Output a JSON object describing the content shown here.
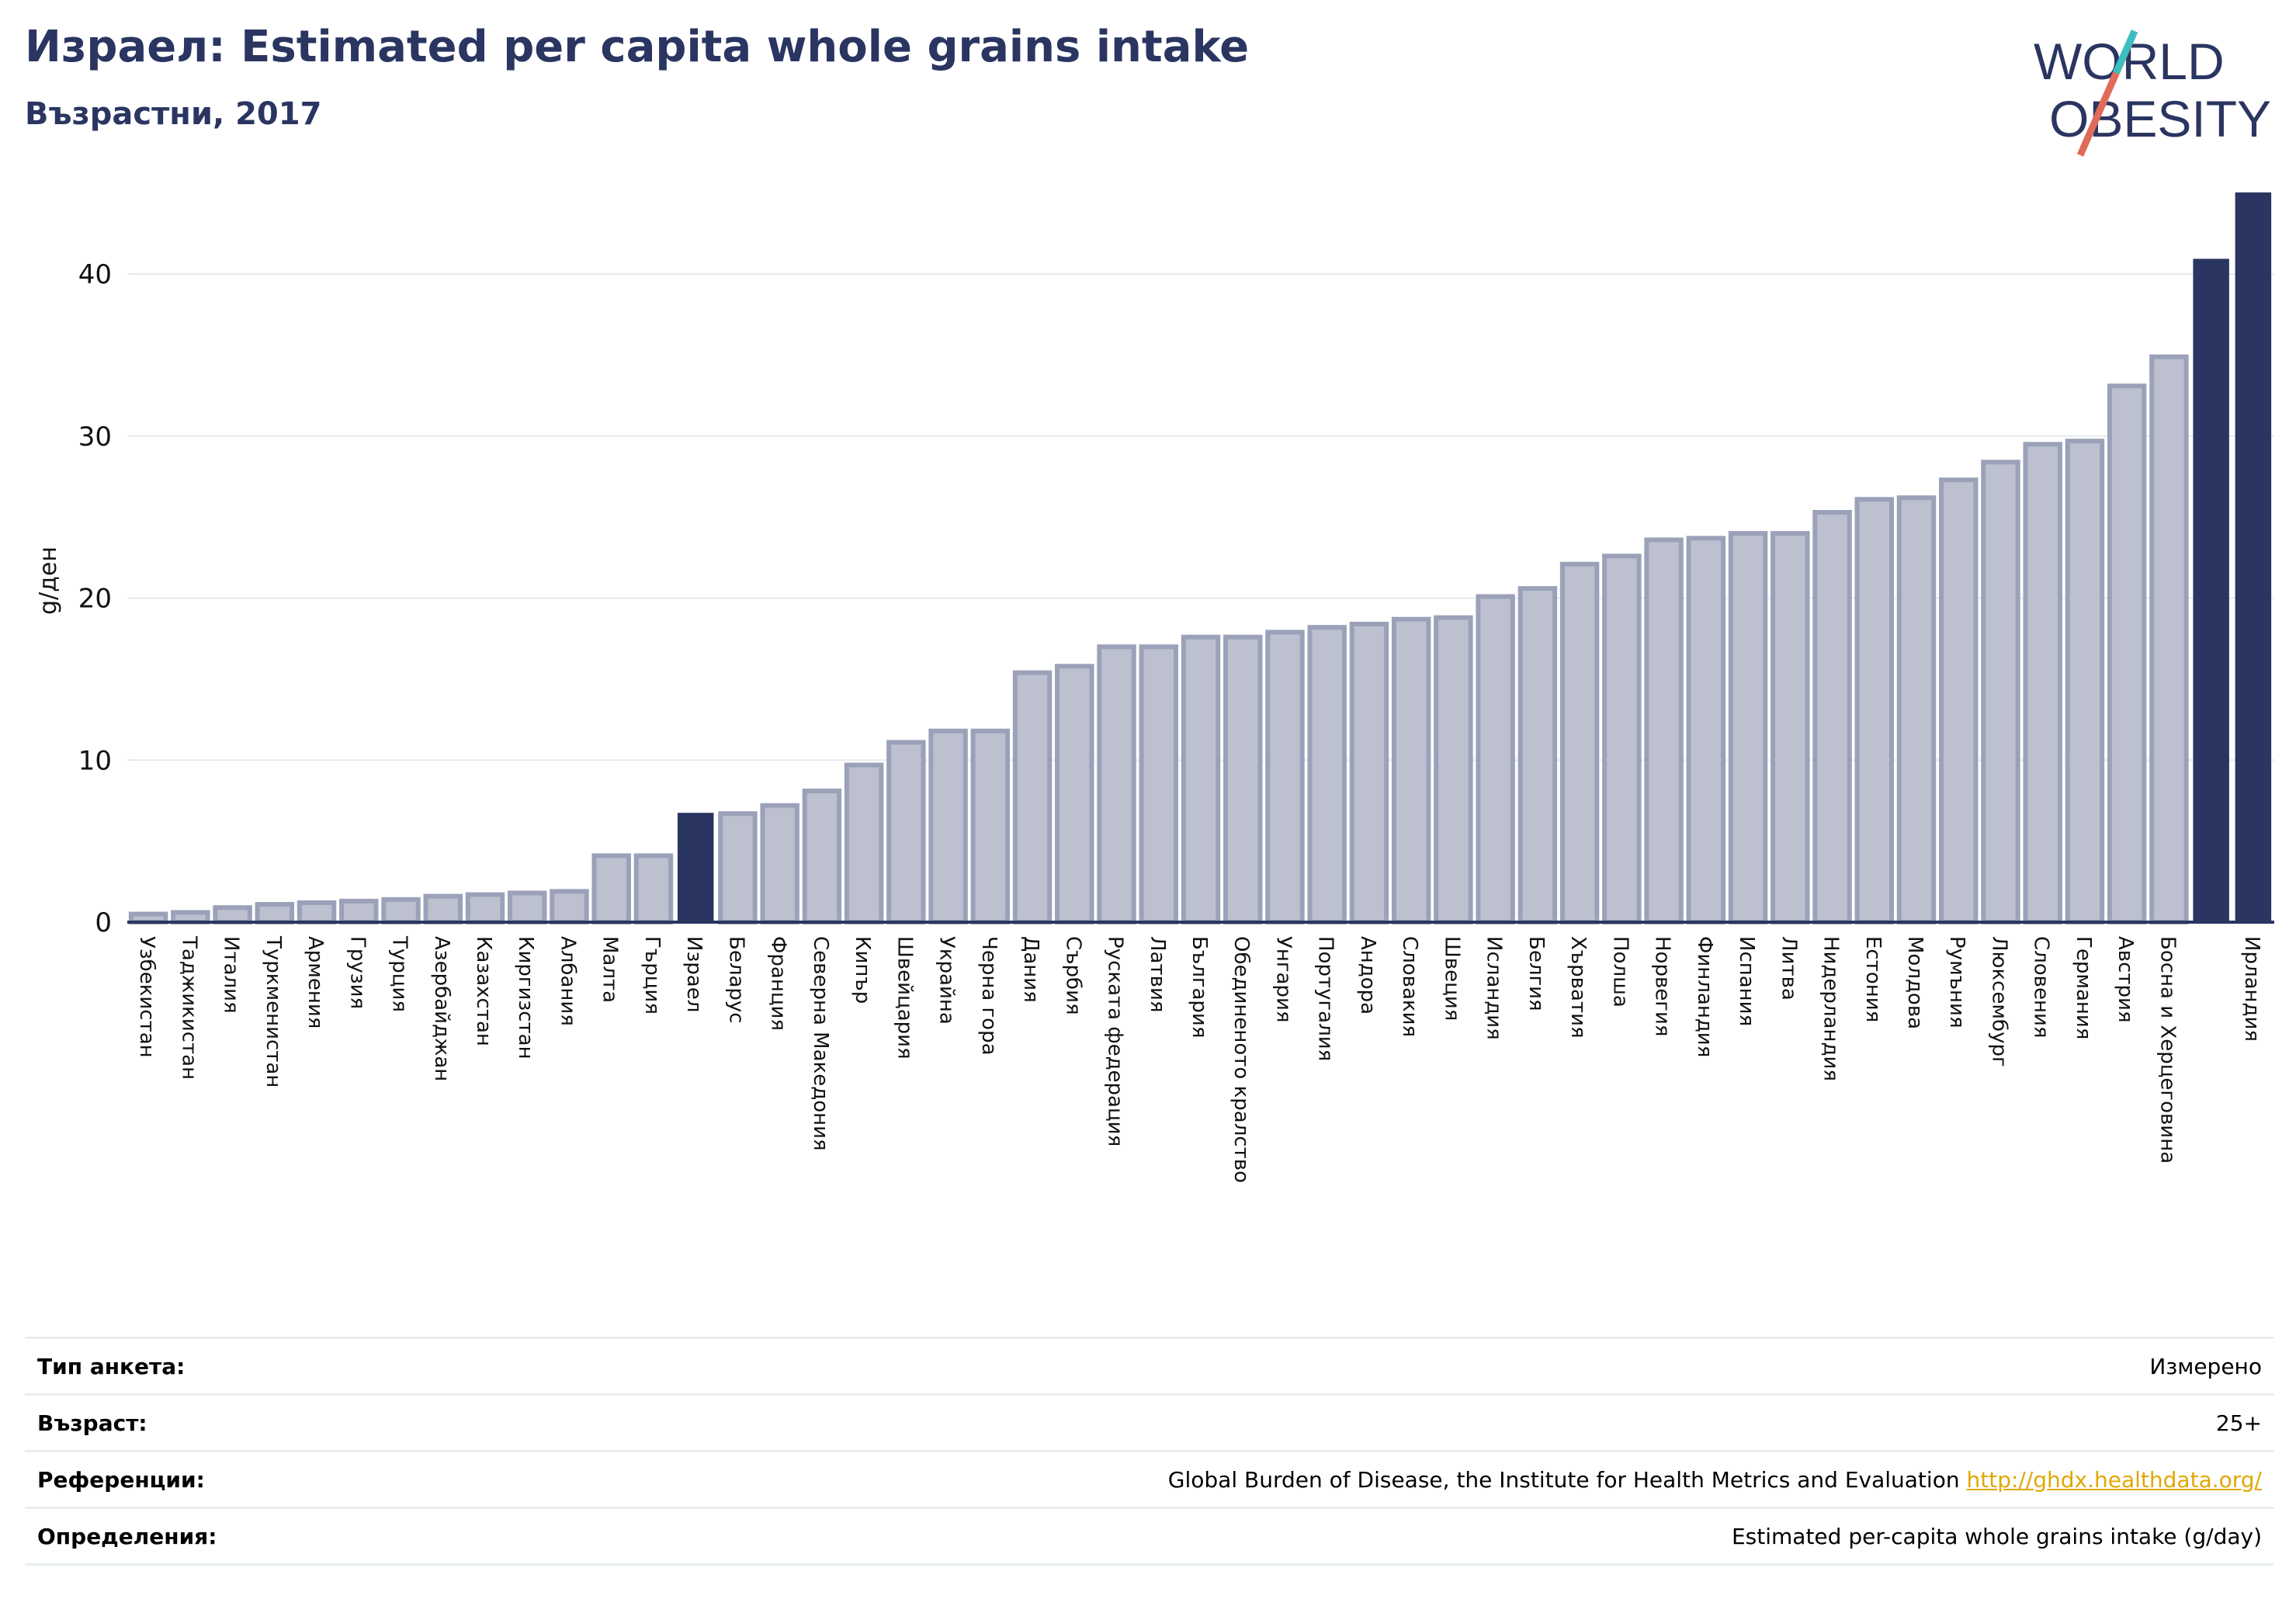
{
  "header": {
    "title": "Израел: Estimated per capita whole grains intake",
    "subtitle": "Възрастни, 2017"
  },
  "logo": {
    "line1": "WORLD",
    "line2": "OBESITY"
  },
  "colors": {
    "bar": "#bcc0cf",
    "bar_edge": "#9ba1b8",
    "highlight": "#2a3561",
    "axis": "#2a3561",
    "grid": "#e6e9ef"
  },
  "chart_data": {
    "type": "bar",
    "title": "Израел: Estimated per capita whole grains intake",
    "ylabel": "g/ден",
    "ylim": [
      0,
      46
    ],
    "yticks": [
      0,
      10,
      20,
      30,
      40
    ],
    "grid": true,
    "highlighted": [
      "Израел",
      "Ирландия"
    ],
    "categories": [
      "Узбекистан",
      "Таджикистан",
      "Италия",
      "Туркменистан",
      "Армения",
      "Грузия",
      "Турция",
      "Азербайджан",
      "Казахстан",
      "Киргизстан",
      "Албания",
      "Малта",
      "Гърция",
      "Израел",
      "Беларус",
      "Франция",
      "Северна Македония",
      "Кипър",
      "Швейцария",
      "Украйна",
      "Черна гора",
      "Дания",
      "Сърбия",
      "Руската федерация",
      "Латвия",
      "България",
      "Обединеното кралство",
      "Унгария",
      "Португалия",
      "Андора",
      "Словакия",
      "Швеция",
      "Исландия",
      "Белгия",
      "Хърватия",
      "Полша",
      "Норвегия",
      "Финландия",
      "Испания",
      "Литва",
      "Нидерландия",
      "Естония",
      "Молдова",
      "Румъния",
      "Люксембург",
      "Словения",
      "Германия",
      "Австрия",
      "Босна и Херцеговина",
      "",
      "Ирландия"
    ],
    "values": [
      0.5,
      0.6,
      0.9,
      1.1,
      1.2,
      1.3,
      1.4,
      1.6,
      1.7,
      1.8,
      1.9,
      4.1,
      4.1,
      6.7,
      6.7,
      7.2,
      8.1,
      9.7,
      11.1,
      11.8,
      11.8,
      15.4,
      15.8,
      17.0,
      17.0,
      17.6,
      17.6,
      17.9,
      18.2,
      18.4,
      18.7,
      18.8,
      20.1,
      20.6,
      22.1,
      22.6,
      23.6,
      23.7,
      24.0,
      24.0,
      25.3,
      26.1,
      26.2,
      27.3,
      28.4,
      29.5,
      29.7,
      33.1,
      34.9,
      40.9,
      45.0
    ]
  },
  "info": {
    "rows": [
      {
        "label": "Тип анкета:",
        "value": "Измерено"
      },
      {
        "label": "Възраст:",
        "value": "25+"
      },
      {
        "label": "Референции:",
        "value": "Global Burden of Disease, the Institute for Health Metrics and Evaluation",
        "link": "http://ghdx.healthdata.org/"
      },
      {
        "label": "Определения:",
        "value": "Estimated per-capita whole grains intake (g/day)"
      }
    ]
  }
}
